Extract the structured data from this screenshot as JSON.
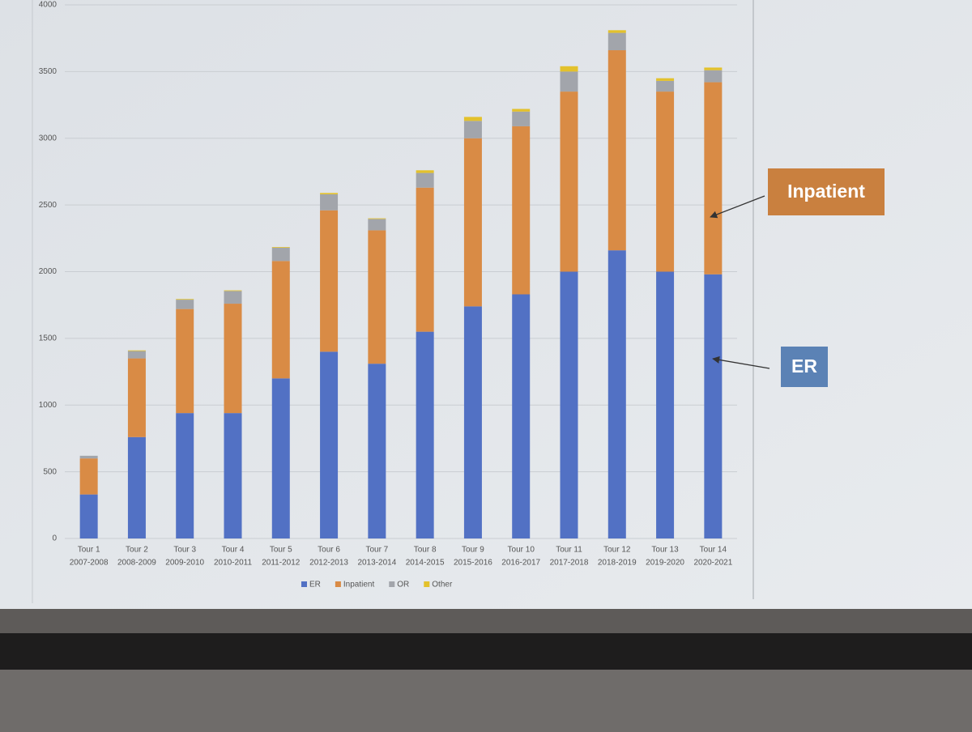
{
  "chart_data": {
    "type": "stacked_bar",
    "categories": [
      [
        "Tour 1",
        "2007-2008"
      ],
      [
        "Tour 2",
        "2008-2009"
      ],
      [
        "Tour 3",
        "2009-2010"
      ],
      [
        "Tour 4",
        "2010-2011"
      ],
      [
        "Tour 5",
        "2011-2012"
      ],
      [
        "Tour 6",
        "2012-2013"
      ],
      [
        "Tour 7",
        "2013-2014"
      ],
      [
        "Tour 8",
        "2014-2015"
      ],
      [
        "Tour 9",
        "2015-2016"
      ],
      [
        "Tour 10",
        "2016-2017"
      ],
      [
        "Tour 11",
        "2017-2018"
      ],
      [
        "Tour 12",
        "2018-2019"
      ],
      [
        "Tour 13",
        "2019-2020"
      ],
      [
        "Tour 14",
        "2020-2021"
      ]
    ],
    "series": [
      {
        "name": "ER",
        "color": "#5271c4",
        "values": [
          330,
          760,
          940,
          940,
          1200,
          1400,
          1310,
          1550,
          1740,
          1830,
          2000,
          2160,
          2000,
          1980
        ]
      },
      {
        "name": "Inpatient",
        "color": "#d98b45",
        "values": [
          270,
          590,
          780,
          820,
          880,
          1060,
          1000,
          1080,
          1260,
          1260,
          1350,
          1500,
          1350,
          1440
        ]
      },
      {
        "name": "OR",
        "color": "#a2a5ab",
        "values": [
          20,
          55,
          70,
          95,
          100,
          120,
          85,
          110,
          130,
          110,
          150,
          130,
          80,
          90
        ]
      },
      {
        "name": "Other",
        "color": "#e3c12c",
        "values": [
          0,
          5,
          5,
          5,
          5,
          10,
          5,
          20,
          30,
          20,
          40,
          20,
          20,
          20
        ]
      }
    ],
    "ylim": [
      0,
      4000
    ],
    "yticks": [
      0,
      500,
      1000,
      1500,
      2000,
      2500,
      3000,
      3500,
      4000
    ],
    "grid": true,
    "legend": "bottom",
    "annotations": [
      {
        "text": "Inpatient",
        "color": "#c9803f"
      },
      {
        "text": "ER",
        "color": "#5b82b5"
      }
    ]
  }
}
